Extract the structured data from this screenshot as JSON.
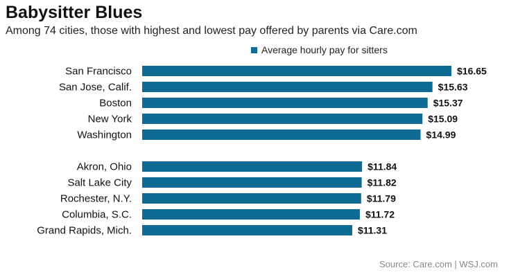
{
  "header": {
    "title": "Babysitter Blues",
    "subtitle": "Among 74 cities, those with highest and lowest pay offered by parents via Care.com"
  },
  "footer": {
    "source": "Source: Care.com  |  WSJ.com"
  },
  "colors": {
    "bar": "#0f6a94",
    "text": "#111111",
    "source": "#888888"
  },
  "chart_data": {
    "type": "bar",
    "orientation": "horizontal",
    "title": "Babysitter Blues",
    "subtitle": "Among 74 cities, those with highest and lowest pay offered by parents via Care.com",
    "legend": {
      "position": "top-right",
      "entries": [
        "Average hourly pay for sitters"
      ]
    },
    "series": [
      {
        "name": "Average hourly pay for sitters",
        "color": "#0f6a94"
      }
    ],
    "groups": [
      {
        "categories": [
          "San Francisco",
          "San Jose, Calif.",
          "Boston",
          "New York",
          "Washington"
        ],
        "values": [
          16.65,
          15.63,
          15.37,
          15.09,
          14.99
        ],
        "labels": [
          "$16.65",
          "$15.63",
          "$15.37",
          "$15.09",
          "$14.99"
        ]
      },
      {
        "categories": [
          "Akron, Ohio",
          "Salt Lake City",
          "Rochester, N.Y.",
          "Columbia, S.C.",
          "Grand Rapids, Mich."
        ],
        "values": [
          11.84,
          11.82,
          11.79,
          11.72,
          11.31
        ],
        "labels": [
          "$11.84",
          "$11.82",
          "$11.79",
          "$11.72",
          "$11.31"
        ]
      }
    ],
    "xlim": [
      0,
      16.65
    ],
    "grid": false,
    "axis_visible": false
  }
}
